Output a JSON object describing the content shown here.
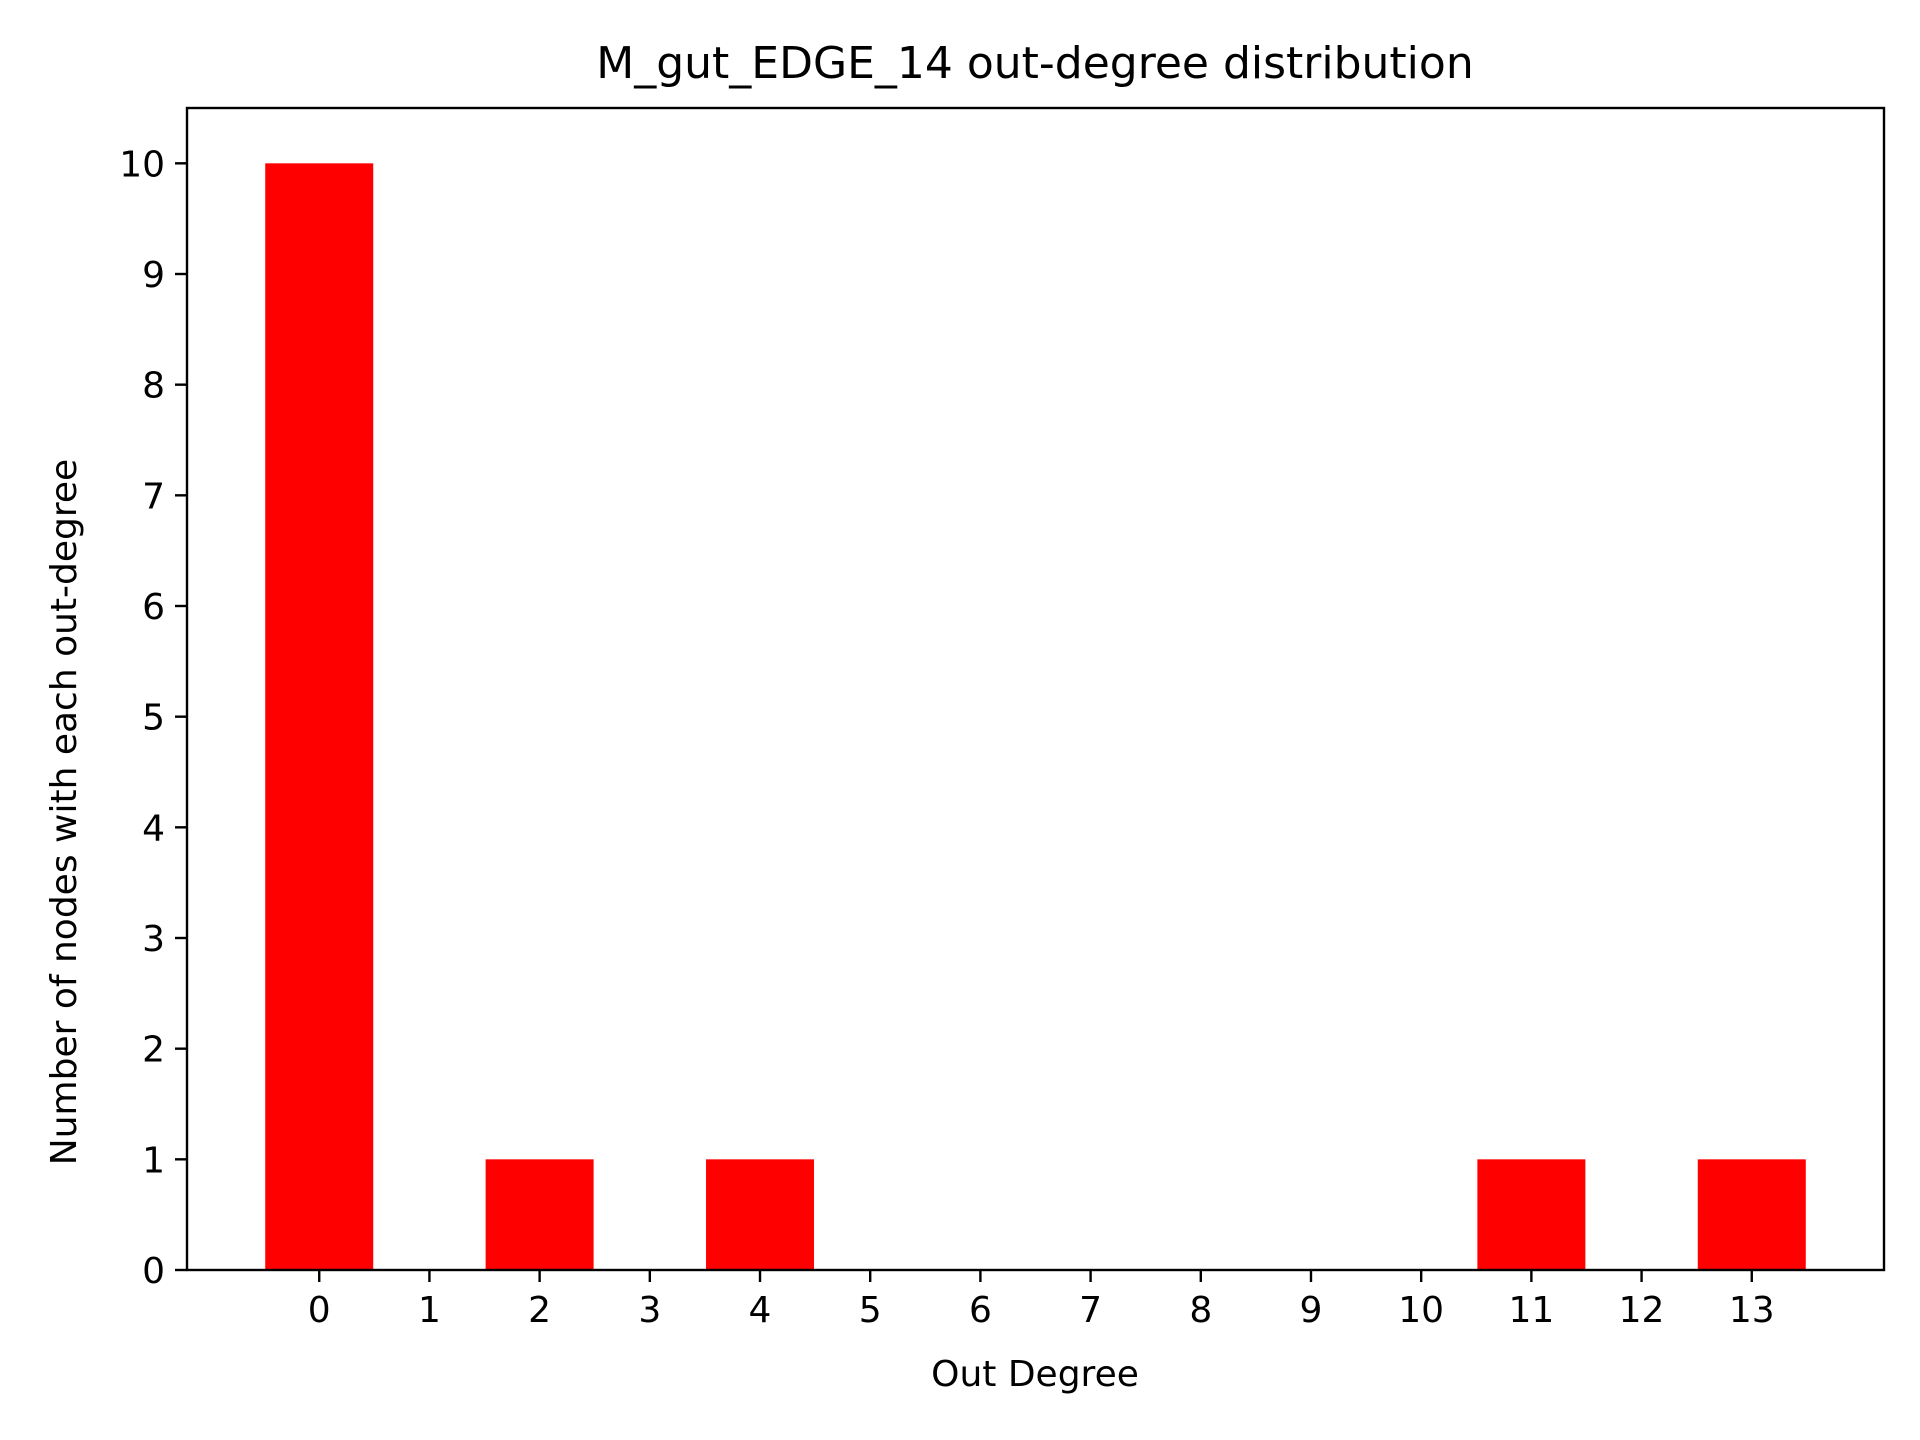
{
  "chart_data": {
    "type": "bar",
    "title": "M_gut_EDGE_14 out-degree distribution",
    "xlabel": "Out Degree",
    "ylabel": "Number of nodes with each out-degree",
    "categories": [
      0,
      2,
      4,
      11,
      13
    ],
    "values": [
      10,
      1,
      1,
      1,
      1
    ],
    "x_ticks": [
      "0",
      "1",
      "2",
      "3",
      "4",
      "5",
      "6",
      "7",
      "8",
      "9",
      "10",
      "11",
      "12",
      "13"
    ],
    "y_ticks": [
      "0",
      "1",
      "2",
      "3",
      "4",
      "5",
      "6",
      "7",
      "8",
      "9",
      "10"
    ],
    "xlim": [
      -1.2,
      14.2
    ],
    "ylim": [
      0,
      10.5
    ],
    "bar_color": "#ff0000",
    "grid": false,
    "legend": "none"
  }
}
